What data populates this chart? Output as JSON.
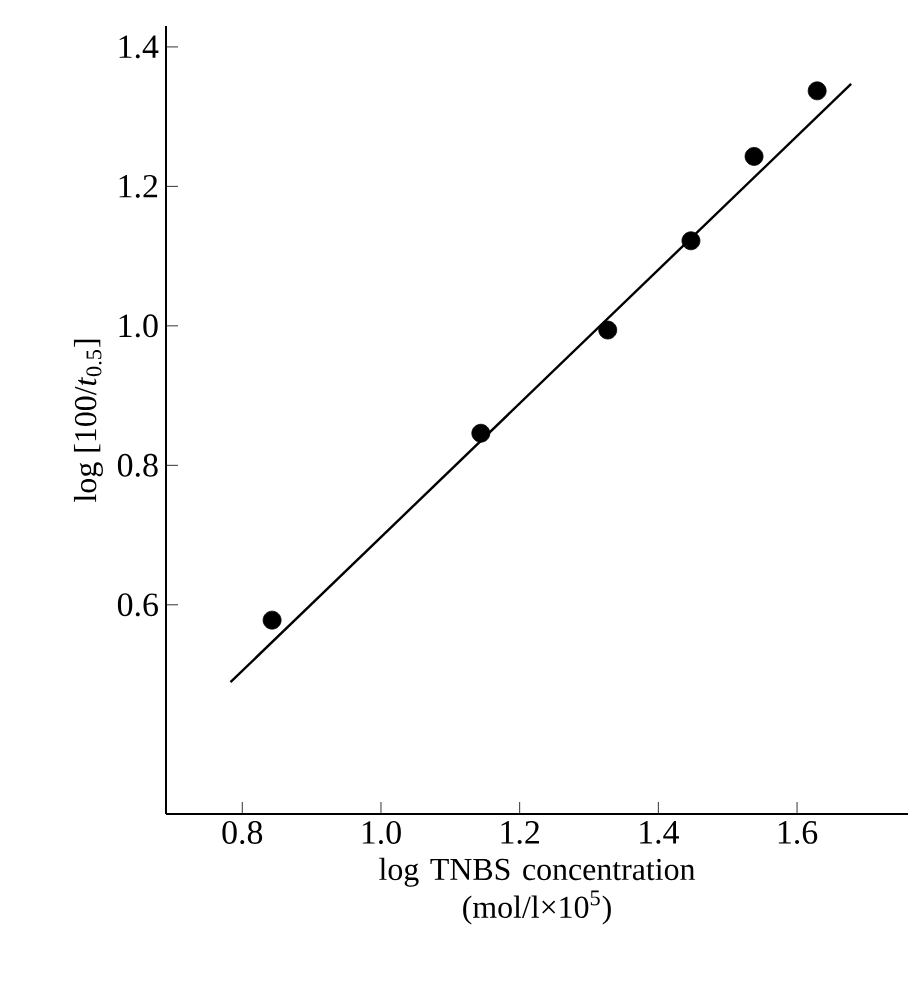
{
  "chart_data": {
    "type": "scatter",
    "xlabel": "log TNBS concentration (mol/l×10$^{5}$)",
    "ylabel": "log [100/*t*$_{0.5}$]",
    "xlim": [
      0.69,
      1.76
    ],
    "ylim": [
      0.3,
      1.43
    ],
    "xticks": [
      0.8,
      {
        "value": 1.0,
        "label": "1.0"
      },
      1.2,
      1.4,
      1.6
    ],
    "yticks": [
      0.6,
      0.8,
      {
        "value": 1.0,
        "label": "1.0"
      },
      1.2,
      1.4
    ],
    "marker": "circle",
    "series": [
      {
        "color": "#000000",
        "x": [
          0.843,
          1.144,
          1.327,
          1.447,
          1.538,
          1.629
        ],
        "values": [
          0.578,
          0.846,
          0.994,
          1.122,
          1.243,
          1.337
        ]
      },
      {
        "type": "line",
        "color": "#000000",
        "marker": "none",
        "line_style": "solid",
        "x": [
          0.783,
          1.678
        ],
        "values": [
          0.489,
          1.347
        ]
      }
    ]
  }
}
